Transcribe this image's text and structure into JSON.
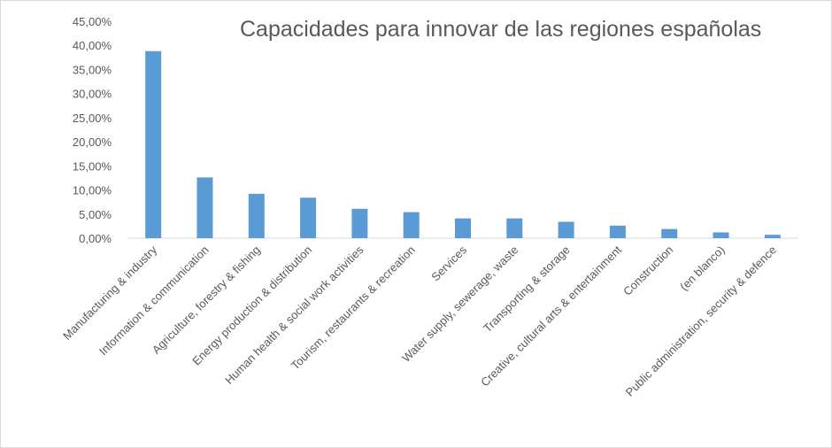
{
  "chart_data": {
    "type": "bar",
    "title": "Capacidades para innovar de las regiones españolas",
    "xlabel": "",
    "ylabel": "",
    "ylim": [
      0,
      0.45
    ],
    "ytick_step": 0.05,
    "ytick_labels": [
      "0,00%",
      "5,00%",
      "10,00%",
      "15,00%",
      "20,00%",
      "25,00%",
      "30,00%",
      "35,00%",
      "40,00%",
      "45,00%"
    ],
    "gridlines": false,
    "legend": "none",
    "bar_color": "#5b9bd5",
    "categories": [
      "Manufacturing & industry",
      "Information & communication",
      "Agriculture, forestry & fishing",
      "Energy production & distribution",
      "Human health & social work activities",
      "Tourism, restaurants & recreation",
      "Services",
      "Water supply, sewerage, waste",
      "Transporting & storage",
      "Creative, cultural arts & entertainment",
      "Construction",
      "(en blanco)",
      "Public administration, security & defence"
    ],
    "values": [
      0.388,
      0.126,
      0.092,
      0.084,
      0.061,
      0.054,
      0.041,
      0.041,
      0.034,
      0.026,
      0.019,
      0.012,
      0.007
    ]
  }
}
